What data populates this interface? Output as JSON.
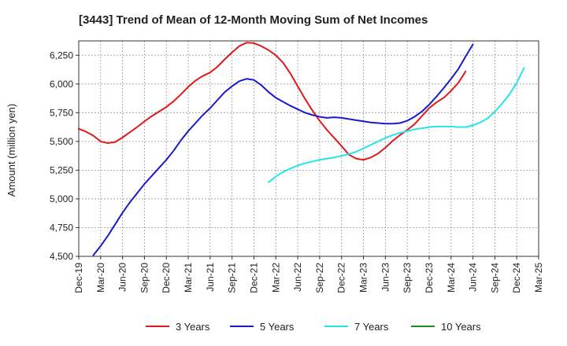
{
  "chart_data": {
    "type": "line",
    "title": "[3443]  Trend of Mean of 12-Month Moving Sum of Net Incomes",
    "xlabel": "",
    "ylabel": "Amount (million yen)",
    "ylim": [
      4500,
      6375
    ],
    "yticks": [
      4500,
      4750,
      5000,
      5250,
      5500,
      5750,
      6000,
      6250
    ],
    "ytick_labels": [
      "4,500",
      "4,750",
      "5,000",
      "5,250",
      "5,500",
      "5,750",
      "6,000",
      "6,250"
    ],
    "x_tick_labels": [
      "Dec-19",
      "Mar-20",
      "Jun-20",
      "Sep-20",
      "Dec-20",
      "Mar-21",
      "Jun-21",
      "Sep-21",
      "Dec-21",
      "Mar-22",
      "Jun-22",
      "Sep-22",
      "Dec-22",
      "Mar-23",
      "Jun-23",
      "Sep-23",
      "Dec-23",
      "Mar-24",
      "Jun-24",
      "Sep-24",
      "Dec-24",
      "Mar-25"
    ],
    "grid": true,
    "legend_position": "bottom",
    "series": [
      {
        "name": "3 Years",
        "color": "#e0191b",
        "start": "Dec-19",
        "values": [
          5610,
          5585,
          5550,
          5500,
          5485,
          5495,
          5535,
          5580,
          5625,
          5675,
          5720,
          5760,
          5800,
          5850,
          5910,
          5975,
          6030,
          6070,
          6100,
          6150,
          6215,
          6275,
          6330,
          6360,
          6355,
          6330,
          6295,
          6250,
          6185,
          6090,
          5980,
          5870,
          5770,
          5680,
          5600,
          5530,
          5460,
          5385,
          5350,
          5340,
          5360,
          5395,
          5445,
          5505,
          5555,
          5600,
          5650,
          5720,
          5790,
          5840,
          5880,
          5940,
          6010,
          6110
        ]
      },
      {
        "name": "5 Years",
        "color": "#1a1acb",
        "start": "Feb-20",
        "values": [
          4510,
          4590,
          4680,
          4780,
          4880,
          4970,
          5050,
          5130,
          5200,
          5270,
          5340,
          5420,
          5510,
          5590,
          5660,
          5730,
          5790,
          5860,
          5930,
          5980,
          6025,
          6045,
          6035,
          5990,
          5930,
          5880,
          5845,
          5810,
          5780,
          5750,
          5730,
          5715,
          5705,
          5710,
          5705,
          5695,
          5685,
          5675,
          5665,
          5660,
          5655,
          5655,
          5660,
          5680,
          5715,
          5760,
          5820,
          5890,
          5965,
          6045,
          6130,
          6240,
          6345
        ]
      },
      {
        "name": "7 Years",
        "color": "#26e5e5",
        "start": "Feb-22",
        "values": [
          5145,
          5195,
          5235,
          5265,
          5290,
          5310,
          5325,
          5340,
          5350,
          5360,
          5375,
          5390,
          5410,
          5440,
          5470,
          5500,
          5530,
          5555,
          5575,
          5590,
          5605,
          5615,
          5625,
          5630,
          5630,
          5630,
          5625,
          5625,
          5640,
          5665,
          5700,
          5760,
          5830,
          5910,
          6010,
          6140
        ]
      },
      {
        "name": "10 Years",
        "color": "#1e8b1e",
        "start": "",
        "values": []
      }
    ]
  }
}
